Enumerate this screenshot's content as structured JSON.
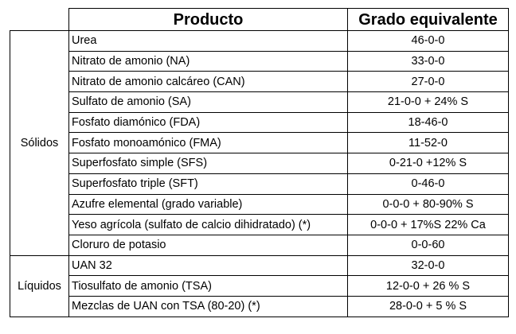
{
  "header": {
    "group": "",
    "product": "Producto",
    "grade": "Grado equivalente"
  },
  "groups": [
    {
      "name": "Sólidos",
      "rows": [
        {
          "product": "Urea",
          "grade": "46-0-0"
        },
        {
          "product": "Nitrato de amonio (NA)",
          "grade": "33-0-0"
        },
        {
          "product": "Nitrato de amonio calcáreo (CAN)",
          "grade": "27-0-0"
        },
        {
          "product": "Sulfato de amonio (SA)",
          "grade": "21-0-0 + 24% S"
        },
        {
          "product": "Fosfato diamónico (FDA)",
          "grade": "18-46-0"
        },
        {
          "product": "Fosfato monoamónico (FMA)",
          "grade": "11-52-0"
        },
        {
          "product": "Superfosfato simple (SFS)",
          "grade": "0-21-0 +12% S"
        },
        {
          "product": "Superfosfato triple (SFT)",
          "grade": "0-46-0"
        },
        {
          "product": "Azufre elemental  (grado variable)",
          "grade": "0-0-0 + 80-90% S"
        },
        {
          "product": "Yeso agrícola (sulfato de calcio dihidratado) (*)",
          "grade": "0-0-0 + 17%S 22% Ca"
        },
        {
          "product": "Cloruro de potasio",
          "grade": "0-0-60"
        }
      ]
    },
    {
      "name": "Líquidos",
      "rows": [
        {
          "product": "UAN 32",
          "grade": "32-0-0"
        },
        {
          "product": "Tiosulfato de amonio (TSA)",
          "grade": "12-0-0 + 26 % S"
        },
        {
          "product": "Mezclas de UAN con TSA (80-20) (*)",
          "grade": "28-0-0 + 5 % S"
        }
      ]
    }
  ]
}
